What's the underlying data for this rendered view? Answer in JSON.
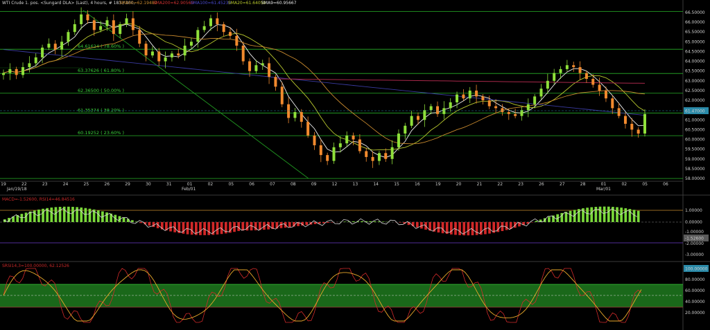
{
  "header": {
    "symbol": "WTI Crude 1. pos. <Sungard DLA> (Last), 4 hours, # 183 / 300,",
    "sma50": "SMA50=62.19480",
    "sma200": "SMA200=62.90560",
    "sma100": "SMA100=61.45230",
    "sma20": "SMA20=61.64050",
    "sma9": "SMA9=60.95667"
  },
  "colors": {
    "background": "#000000",
    "up_candle": "#8fe03a",
    "down_candle": "#f28a2e",
    "fib": "#28b428",
    "sma9": "#f0f0f0",
    "sma20": "#b9c92e",
    "sma50": "#c98a2e",
    "sma100": "#3a3aa0",
    "sma200": "#a8284a",
    "trend": "#1e8c1e",
    "price_badge": "#2a8aa8"
  },
  "price_axis": {
    "ticks": [
      "66.50000",
      "66.00000",
      "65.50000",
      "65.00000",
      "64.50000",
      "64.00000",
      "63.50000",
      "63.00000",
      "62.50000",
      "62.00000",
      "61.50000",
      "61.00000",
      "60.50000",
      "60.00000",
      "59.50000",
      "59.00000",
      "58.50000",
      "58.00000"
    ],
    "current": "61.47000"
  },
  "x_axis": {
    "labels": [
      "19",
      "22",
      "23",
      "24",
      "25",
      "26",
      "29",
      "30",
      "31",
      "01",
      "02",
      "05",
      "06",
      "07",
      "08",
      "09",
      "12",
      "13",
      "14",
      "15",
      "16",
      "19",
      "20",
      "21",
      "22",
      "23",
      "26",
      "27",
      "28",
      "01",
      "02",
      "05",
      "06"
    ],
    "periods": [
      "Jan/19/18",
      "Feb/01",
      "Mar/01"
    ]
  },
  "fib_labels": [
    "64.61624 ( 78.60% )",
    "63.37626 ( 61.80% )",
    "62.36500 ( 50.00% )",
    "61.35374 ( 38.20% )",
    "60.19252 ( 23.60% )"
  ],
  "macd_panel": {
    "label": "MACD=-1.52600, RSI14=46.84516",
    "ticks": [
      "1.00000",
      "0.00000",
      "-1.00000",
      "-2.00000",
      "-3.00000"
    ],
    "current": "-1.52600"
  },
  "stoch_panel": {
    "label": "SRSI14,3=100.00000, 62.12526",
    "ticks": [
      "80.00000",
      "60.00000",
      "40.00000",
      "20.00000"
    ],
    "current": "100.00000"
  },
  "chart_data": {
    "type": "candlestick",
    "title": "WTI Crude 1. pos. <Sungard DLA> (Last), 4 hours",
    "ylim": [
      57.9,
      66.75
    ],
    "fibonacci": [
      {
        "level": 64.61624,
        "label": "78.60%"
      },
      {
        "level": 63.37626,
        "label": "61.80%"
      },
      {
        "level": 62.365,
        "label": "50.00%"
      },
      {
        "level": 61.35374,
        "label": "38.20%"
      },
      {
        "level": 60.19252,
        "label": "23.60%"
      }
    ],
    "fib_extra_levels": [
      66.55,
      58.0
    ],
    "closes": [
      63.4,
      63.6,
      63.3,
      63.7,
      63.9,
      64.2,
      64.7,
      64.9,
      64.6,
      65.0,
      65.5,
      65.9,
      66.4,
      66.1,
      65.6,
      65.8,
      66.1,
      65.4,
      65.9,
      66.2,
      65.6,
      64.9,
      64.3,
      64.5,
      64.0,
      64.2,
      64.4,
      64.3,
      64.8,
      65.0,
      65.6,
      65.8,
      66.2,
      65.9,
      65.5,
      65.3,
      64.8,
      64.0,
      63.5,
      63.8,
      63.9,
      63.2,
      62.7,
      61.8,
      61.1,
      61.4,
      60.9,
      60.2,
      59.7,
      59.2,
      58.9,
      59.6,
      59.8,
      60.2,
      60.0,
      59.4,
      59.1,
      58.9,
      59.3,
      59.0,
      59.6,
      60.3,
      60.7,
      61.2,
      61.0,
      61.5,
      61.7,
      61.3,
      61.6,
      61.9,
      62.3,
      62.1,
      62.5,
      62.2,
      62.0,
      61.7,
      61.6,
      61.4,
      61.3,
      61.2,
      61.5,
      61.8,
      62.2,
      62.6,
      63.0,
      63.4,
      63.6,
      63.8,
      63.7,
      63.4,
      63.1,
      62.8,
      62.5,
      62.1,
      61.6,
      61.2,
      60.8,
      60.5,
      60.3,
      61.3
    ],
    "moving_averages": {
      "SMA9": 60.95667,
      "SMA20": 61.6405,
      "SMA50": 62.1948,
      "SMA100": 61.4523,
      "SMA200": 62.9056
    }
  }
}
